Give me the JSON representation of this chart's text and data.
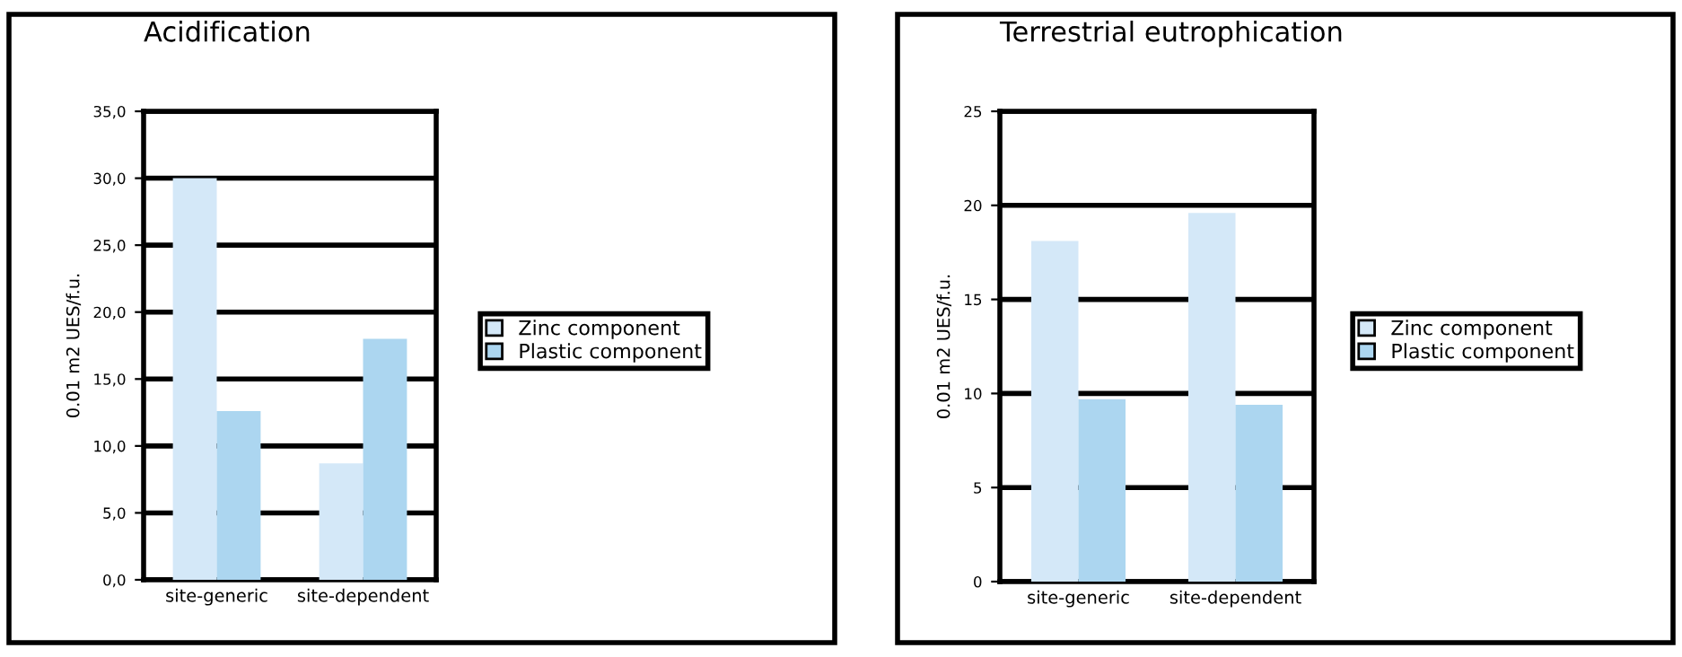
{
  "chart_data": [
    {
      "type": "bar",
      "title": "Acidification",
      "ylabel": "0.01 m2 UES/f.u.",
      "categories": [
        "site-generic",
        "site-dependent"
      ],
      "series": [
        {
          "name": "Zinc component",
          "color": "#d4e8f8",
          "values": [
            30.0,
            8.7
          ]
        },
        {
          "name": "Plastic component",
          "color": "#acd6f0",
          "values": [
            12.6,
            18.0
          ]
        }
      ],
      "ylim": [
        0,
        35
      ],
      "yticks": [
        {
          "value": 0,
          "label": "0,0"
        },
        {
          "value": 5,
          "label": "5,0"
        },
        {
          "value": 10,
          "label": "10,0"
        },
        {
          "value": 15,
          "label": "15,0"
        },
        {
          "value": 20,
          "label": "20,0"
        },
        {
          "value": 25,
          "label": "25,0"
        },
        {
          "value": 30,
          "label": "30,0"
        },
        {
          "value": 35,
          "label": "35,0"
        }
      ],
      "grid": "y",
      "legend": "right"
    },
    {
      "type": "bar",
      "title": "Terrestrial eutrophication",
      "ylabel": "0.01 m2 UES/f.u.",
      "categories": [
        "site-generic",
        "site-dependent"
      ],
      "series": [
        {
          "name": "Zinc component",
          "color": "#d4e8f8",
          "values": [
            18.1,
            19.6
          ]
        },
        {
          "name": "Plastic component",
          "color": "#acd6f0",
          "values": [
            9.7,
            9.4
          ]
        }
      ],
      "ylim": [
        0,
        25
      ],
      "yticks": [
        0,
        5,
        10,
        15,
        20,
        25
      ],
      "grid": "y",
      "legend": "right"
    }
  ]
}
